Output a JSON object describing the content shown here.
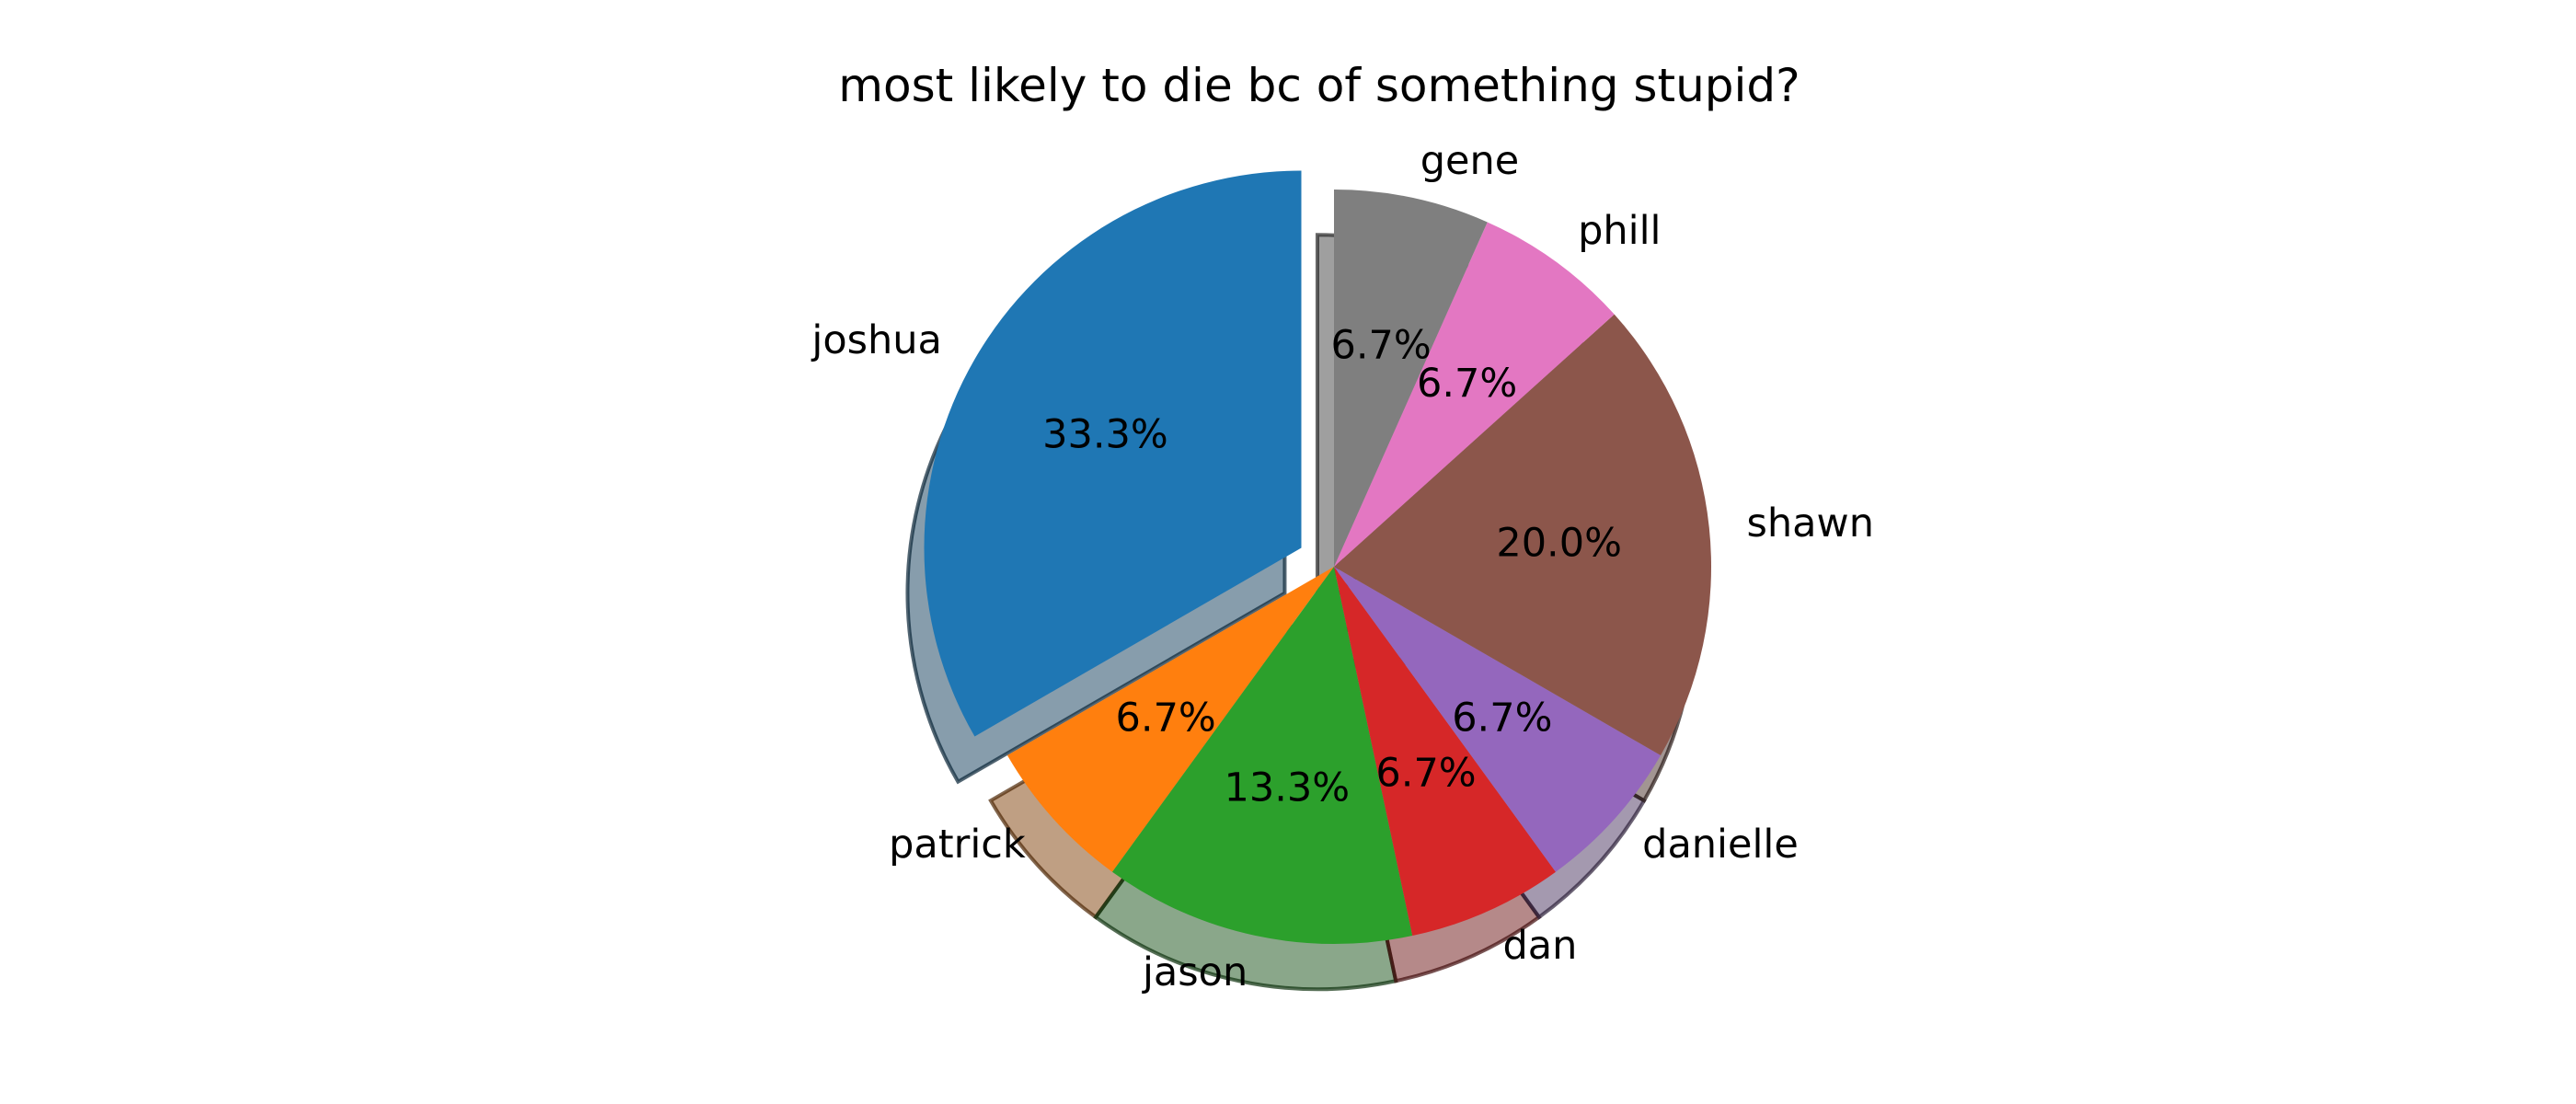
{
  "chart_data": {
    "type": "pie",
    "title": "most likely to die bc of something stupid?",
    "start_angle_deg": 90,
    "direction": "counterclockwise",
    "shadow": true,
    "pct_format": "%.1f%%",
    "slices": [
      {
        "label": "joshua",
        "value": 5,
        "pct": "33.3%",
        "color": "#1f77b4",
        "exploded": true
      },
      {
        "label": "patrick",
        "value": 1,
        "pct": "6.7%",
        "color": "#ff7f0e",
        "exploded": false
      },
      {
        "label": "jason",
        "value": 2,
        "pct": "13.3%",
        "color": "#2ca02c",
        "exploded": false
      },
      {
        "label": "dan",
        "value": 1,
        "pct": "6.7%",
        "color": "#d62728",
        "exploded": false
      },
      {
        "label": "danielle",
        "value": 1,
        "pct": "6.7%",
        "color": "#9467bd",
        "exploded": false
      },
      {
        "label": "shawn",
        "value": 3,
        "pct": "20.0%",
        "color": "#8c564b",
        "exploded": false
      },
      {
        "label": "phill",
        "value": 1,
        "pct": "6.7%",
        "color": "#e377c2",
        "exploded": false
      },
      {
        "label": "gene",
        "value": 1,
        "pct": "6.7%",
        "color": "#7f7f7f",
        "exploded": false
      }
    ]
  }
}
